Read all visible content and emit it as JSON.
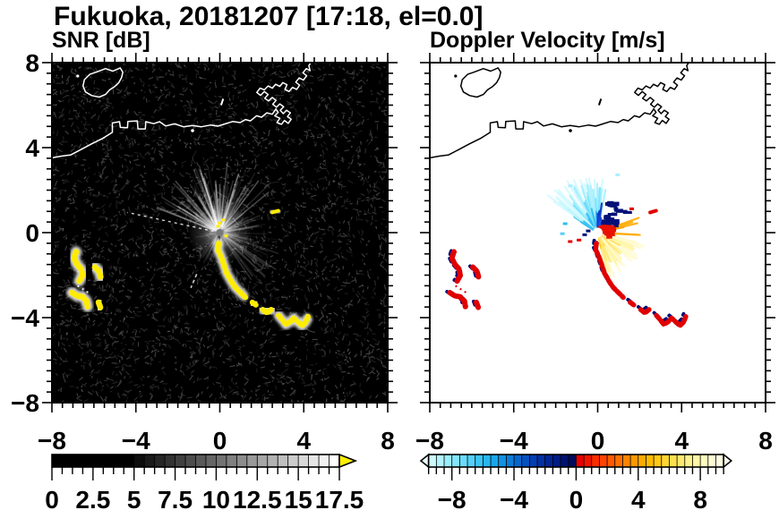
{
  "title": "Fukuoka, 20181207 [17:18, el=0.0]",
  "panels": [
    {
      "id": "snr",
      "subtitle": "SNR [dB]",
      "bg": "#000000",
      "coast_color": "#ffffff"
    },
    {
      "id": "vel",
      "subtitle": "Doppler Velocity [m/s]",
      "bg": "#ffffff",
      "coast_color": "#000000"
    }
  ],
  "axes": {
    "xlim": [
      -8,
      8
    ],
    "ylim": [
      -8,
      8
    ],
    "major_step": 4,
    "minor_step": 0.5,
    "x_tick_labels": [
      "−8",
      "−4",
      "0",
      "4",
      "8"
    ],
    "x_tick_values": [
      -8,
      -4,
      0,
      4,
      8
    ],
    "y_tick_labels": [
      "8",
      "4",
      "0",
      "−4",
      "−8"
    ],
    "y_tick_values": [
      8,
      4,
      0,
      -4,
      -8
    ]
  },
  "colorbars": [
    {
      "id": "snr-colorbar",
      "min": 0,
      "max": 17.5,
      "cell": 0.625,
      "tick_labels": [
        "0",
        "2.5",
        "5",
        "7.5",
        "10",
        "12.5",
        "15",
        "17.5"
      ],
      "tick_values": [
        0,
        2.5,
        5,
        7.5,
        10,
        12.5,
        15,
        17.5
      ],
      "minor_step": 0.625,
      "overflow_arrow_color": "#ffef00",
      "colors": [
        "#000000",
        "#000000",
        "#000000",
        "#000000",
        "#000000",
        "#000000",
        "#000000",
        "#000000",
        "#0d0d0d",
        "#1a1a1a",
        "#262626",
        "#333333",
        "#404040",
        "#4d4d4d",
        "#595959",
        "#666666",
        "#737373",
        "#808080",
        "#8c8c8c",
        "#999999",
        "#a6a6a6",
        "#b3b3b3",
        "#bfbfbf",
        "#cccccc",
        "#d9d9d9",
        "#e6e6e6",
        "#f2f2f2",
        "#ffffff"
      ]
    },
    {
      "id": "velocity-colorbar",
      "min": -10,
      "max": 10,
      "cell": 0.5,
      "tick_labels": [
        "−8",
        "−4",
        "0",
        "4",
        "8"
      ],
      "tick_values": [
        -8,
        -4,
        0,
        4,
        8
      ],
      "minor_step": 0.5,
      "left_arrow_color": "#eeffff",
      "right_arrow_color": "#fffff4",
      "colors": [
        "#e4ffff",
        "#ccfaff",
        "#b4f4ff",
        "#9cedff",
        "#84e5fe",
        "#6cdbfc",
        "#54d0f9",
        "#3cc4f5",
        "#28b6f0",
        "#1aa6ea",
        "#1292e2",
        "#0c7cd8",
        "#0866cc",
        "#0550c0",
        "#033eb2",
        "#0230a4",
        "#012594",
        "#011b82",
        "#00126e",
        "#000a58",
        "#e60000",
        "#f01400",
        "#fa2c00",
        "#ff4400",
        "#ff5a00",
        "#ff7000",
        "#ff8400",
        "#ff9800",
        "#ffaa00",
        "#ffbc00",
        "#ffca14",
        "#ffd632",
        "#ffe150",
        "#ffea6e",
        "#fff18c",
        "#fff6a6",
        "#fffabe",
        "#fffcd2",
        "#fffee2",
        "#ffffee"
      ]
    }
  ],
  "chart_data": {
    "type": "heatmap",
    "site": "Fukuoka",
    "date": "20181207",
    "time": "17:18",
    "elevation": "0.0",
    "panel_variables": [
      {
        "name": "SNR",
        "units": "dB",
        "range": [
          0,
          17.5
        ],
        "overflow": "yellow"
      },
      {
        "name": "Doppler Velocity",
        "units": "m/s",
        "range": [
          -10,
          10
        ]
      }
    ],
    "radar_center": [
      0,
      0
    ],
    "coast": {
      "main": [
        [
          -8,
          3.52
        ],
        [
          -7.55,
          3.6
        ],
        [
          -7.1,
          3.66
        ],
        [
          -6.6,
          3.92
        ],
        [
          -6.1,
          4.18
        ],
        [
          -5.55,
          4.45
        ],
        [
          -5.12,
          4.72
        ],
        [
          -5.12,
          5.16
        ],
        [
          -4.78,
          5.22
        ],
        [
          -4.74,
          4.95
        ],
        [
          -4.4,
          4.94
        ],
        [
          -4.38,
          5.23
        ],
        [
          -3.93,
          5.26
        ],
        [
          -3.9,
          4.88
        ],
        [
          -3.55,
          4.88
        ],
        [
          -3.53,
          5.22
        ],
        [
          -3.15,
          5.13
        ],
        [
          -2.87,
          5.22
        ],
        [
          -2.58,
          5.02
        ],
        [
          -2.16,
          5.12
        ],
        [
          -1.73,
          4.98
        ],
        [
          -1.31,
          5.04
        ],
        [
          -0.88,
          4.98
        ],
        [
          -0.45,
          5.06
        ],
        [
          -0.1,
          5.01
        ],
        [
          0.26,
          5.12
        ],
        [
          0.61,
          5.23
        ],
        [
          0.97,
          5.18
        ],
        [
          1.22,
          5.32
        ],
        [
          1.46,
          5.26
        ],
        [
          1.75,
          5.5
        ],
        [
          1.99,
          5.43
        ],
        [
          2.24,
          5.64
        ],
        [
          2.5,
          5.57
        ],
        [
          2.67,
          5.82
        ]
      ],
      "port": [
        [
          2.67,
          5.82
        ],
        [
          2.78,
          5.66
        ],
        [
          2.62,
          5.5
        ],
        [
          2.86,
          5.38
        ],
        [
          2.72,
          5.18
        ],
        [
          2.94,
          5.1
        ],
        [
          3.08,
          5.28
        ],
        [
          3.26,
          5.14
        ],
        [
          3.4,
          5.34
        ],
        [
          3.22,
          5.46
        ],
        [
          3.36,
          5.64
        ],
        [
          3.18,
          5.76
        ],
        [
          3.02,
          5.6
        ],
        [
          2.88,
          5.76
        ],
        [
          3.04,
          5.92
        ],
        [
          2.86,
          6.06
        ],
        [
          2.7,
          5.9
        ],
        [
          2.52,
          6.04
        ],
        [
          2.68,
          6.22
        ],
        [
          2.5,
          6.36
        ],
        [
          2.32,
          6.2
        ],
        [
          2.14,
          6.32
        ],
        [
          2.3,
          6.5
        ],
        [
          2.12,
          6.64
        ],
        [
          1.94,
          6.46
        ],
        [
          1.76,
          6.6
        ],
        [
          1.92,
          6.8
        ],
        [
          2.12,
          6.72
        ],
        [
          2.3,
          6.9
        ],
        [
          2.5,
          6.8
        ],
        [
          2.66,
          6.98
        ],
        [
          2.86,
          6.88
        ],
        [
          3.0,
          7.06
        ],
        [
          3.2,
          6.96
        ],
        [
          3.1,
          6.74
        ],
        [
          3.3,
          6.64
        ],
        [
          3.46,
          6.84
        ],
        [
          3.66,
          6.74
        ],
        [
          3.8,
          6.94
        ],
        [
          3.62,
          7.08
        ],
        [
          3.78,
          7.28
        ],
        [
          3.98,
          7.18
        ],
        [
          4.14,
          7.38
        ],
        [
          3.96,
          7.52
        ],
        [
          4.12,
          7.72
        ],
        [
          4.3,
          7.62
        ],
        [
          4.24,
          7.86
        ],
        [
          4.38,
          8.06
        ]
      ],
      "island": [
        [
          -4.75,
          7.75
        ],
        [
          -5.1,
          7.6
        ],
        [
          -5.45,
          7.72
        ],
        [
          -5.9,
          7.55
        ],
        [
          -6.2,
          7.45
        ],
        [
          -6.45,
          7.2
        ],
        [
          -6.52,
          6.9
        ],
        [
          -6.4,
          6.62
        ],
        [
          -6.1,
          6.45
        ],
        [
          -5.75,
          6.38
        ],
        [
          -5.45,
          6.5
        ],
        [
          -5.25,
          6.72
        ],
        [
          -5.0,
          6.88
        ],
        [
          -4.82,
          7.05
        ],
        [
          -4.68,
          7.3
        ],
        [
          -4.62,
          7.55
        ]
      ],
      "island_dot": [
        -6.77,
        7.37
      ],
      "small_island": [
        -1.3,
        4.8
      ],
      "tick_mark": [
        [
          0.06,
          6.0
        ],
        [
          0.16,
          6.3
        ]
      ]
    },
    "echo_chain": [
      [
        [
          -0.06,
          -0.5
        ],
        [
          -0.1,
          -0.8
        ],
        [
          0.02,
          -1.05
        ],
        [
          0.12,
          -1.3
        ],
        [
          0.22,
          -1.6
        ],
        [
          0.32,
          -1.9
        ],
        [
          0.45,
          -2.12
        ],
        [
          0.58,
          -2.35
        ],
        [
          0.72,
          -2.55
        ],
        [
          0.88,
          -2.72
        ],
        [
          1.05,
          -2.88
        ],
        [
          1.22,
          -3.05
        ]
      ],
      [
        [
          1.55,
          -3.28
        ],
        [
          1.72,
          -3.4
        ]
      ],
      [
        [
          2.05,
          -3.62
        ],
        [
          2.25,
          -3.78
        ],
        [
          2.45,
          -3.62
        ]
      ],
      [
        [
          2.8,
          -3.9
        ],
        [
          2.98,
          -4.1
        ],
        [
          3.15,
          -4.32
        ],
        [
          3.35,
          -4.2
        ],
        [
          3.52,
          -4.02
        ],
        [
          3.72,
          -4.2
        ],
        [
          3.92,
          -4.38
        ],
        [
          4.1,
          -4.2
        ],
        [
          4.2,
          -3.95
        ]
      ]
    ],
    "echo_cluster": [
      [
        [
          -6.85,
          -0.9
        ],
        [
          -6.95,
          -1.2
        ],
        [
          -6.8,
          -1.5
        ],
        [
          -6.6,
          -1.72
        ],
        [
          -6.55,
          -2.02
        ],
        [
          -6.7,
          -2.28
        ]
      ],
      [
        [
          -5.95,
          -1.62
        ],
        [
          -5.75,
          -1.82
        ],
        [
          -5.68,
          -2.08
        ]
      ],
      [
        [
          -7.05,
          -2.82
        ],
        [
          -6.8,
          -2.98
        ],
        [
          -6.55,
          -3.02
        ],
        [
          -6.35,
          -3.22
        ],
        [
          -6.3,
          -3.48
        ]
      ],
      [
        [
          -5.78,
          -3.28
        ],
        [
          -5.68,
          -3.55
        ]
      ]
    ],
    "echo_dotted": [
      [
        -6.78,
        -2.5
      ],
      [
        -6.18,
        -2.88
      ]
    ],
    "echo_dash": [
      [
        2.5,
        0.95
      ],
      [
        2.78,
        1.03
      ]
    ],
    "snr_render": {
      "echo_color": "#ffec00",
      "noise": {
        "count": 3200,
        "seed": 7
      },
      "fans": [
        {
          "seed": 11,
          "n": 150,
          "az": [
            -70,
            55
          ],
          "len": [
            0.6,
            3.4
          ],
          "width": 1.6,
          "op": [
            0.05,
            0.32
          ]
        },
        {
          "seed": 12,
          "n": 30,
          "az": [
            60,
            95
          ],
          "len": [
            0.5,
            2.3
          ],
          "width": 1.5,
          "op": [
            0.04,
            0.16
          ]
        },
        {
          "seed": 13,
          "n": 34,
          "az": [
            95,
            150
          ],
          "len": [
            0.8,
            3.2
          ],
          "width": 1.6,
          "op": [
            0.04,
            0.18
          ]
        },
        {
          "seed": 14,
          "n": 14,
          "az": [
            185,
            240
          ],
          "len": [
            0.5,
            1.7
          ],
          "width": 1.4,
          "op": [
            0.05,
            0.14
          ]
        },
        {
          "seed": 15,
          "n": 10,
          "az": [
            255,
            300
          ],
          "len": [
            0.4,
            1.2
          ],
          "width": 1.4,
          "op": [
            0.04,
            0.1
          ]
        }
      ],
      "long_ray": {
        "from": [
          0,
          0
        ],
        "to": [
          -4.4,
          0.95
        ]
      },
      "short_ray": {
        "from": [
          -1.1,
          -1.95
        ],
        "to": [
          -1.38,
          -2.6
        ]
      },
      "shadow_wedges": [
        {
          "az": [
            176,
            193
          ],
          "len": 1.35
        },
        {
          "az": [
            197,
            206
          ],
          "len": 1.05
        }
      ],
      "center_dot_color": "#787878",
      "center_flecks": [
        [
          0,
          0.45
        ],
        [
          0.15,
          0.6
        ],
        [
          -0.08,
          0.3
        ],
        [
          0.3,
          -0.15
        ]
      ]
    },
    "vel_render": {
      "echo_color": "#e00000",
      "echo_accent": "#041078",
      "fans": [
        {
          "seed": 21,
          "n": 85,
          "az": [
            -58,
            12
          ],
          "len": [
            0.7,
            3.0
          ],
          "width": 2.2,
          "colors": [
            "#2fbef0",
            "#4fd0f6",
            "#78e2fb",
            "#a8efff",
            "#d4faff"
          ]
        },
        {
          "seed": 22,
          "n": 12,
          "az": [
            0,
            22
          ],
          "len": [
            0.5,
            1.5
          ],
          "width": 2.2,
          "colors": [
            "#1b50e8",
            "#0f3ad2",
            "#0a2cb8"
          ]
        },
        {
          "seed": 23,
          "n": 14,
          "az": [
            68,
            96
          ],
          "len": [
            0.5,
            2.1
          ],
          "width": 2.2,
          "colors": [
            "#ff4400",
            "#ff7000",
            "#ff9400",
            "#ffaa00"
          ]
        },
        {
          "seed": 24,
          "n": 72,
          "az": [
            100,
            168
          ],
          "len": [
            0.5,
            2.3
          ],
          "width": 2.2,
          "colors": [
            "#ffc400",
            "#ffd83e",
            "#ffe874",
            "#fff5a8",
            "#fffbd0"
          ]
        }
      ],
      "navy_cluster": {
        "seed": 25,
        "n": 26,
        "box": [
          0.25,
          0.35,
          1.05,
          1.45
        ],
        "color": "#041078"
      },
      "red_core": {
        "seed": 26,
        "n": 16,
        "box": [
          0.1,
          -0.15,
          0.75,
          0.35
        ],
        "color": "#ea1000"
      },
      "navy_dashes": [
        [
          1.0,
          1.05
        ],
        [
          1.2,
          1.0
        ],
        [
          1.42,
          0.95
        ]
      ],
      "specks": [
        {
          "p": [
            -1.31,
            -0.42
          ],
          "c": "#e00000"
        },
        {
          "p": [
            -0.89,
            -0.35
          ],
          "c": "#e00000"
        },
        {
          "p": [
            -0.62,
            -0.1
          ],
          "c": "#041078"
        },
        {
          "p": [
            -0.45,
            0.08
          ],
          "c": "#041078"
        },
        {
          "p": [
            -1.55,
            0.42
          ],
          "c": "#2fbef0"
        },
        {
          "p": [
            -1.68,
            -0.05
          ],
          "c": "#54d0f6"
        },
        {
          "p": [
            1.62,
            1.12
          ],
          "c": "#e00000"
        },
        {
          "p": [
            0.95,
            2.72
          ],
          "c": "#a8efff"
        },
        {
          "p": [
            -1.3,
            2.2
          ],
          "c": "#a8efff"
        }
      ],
      "center_hole_r": 5.5
    }
  }
}
